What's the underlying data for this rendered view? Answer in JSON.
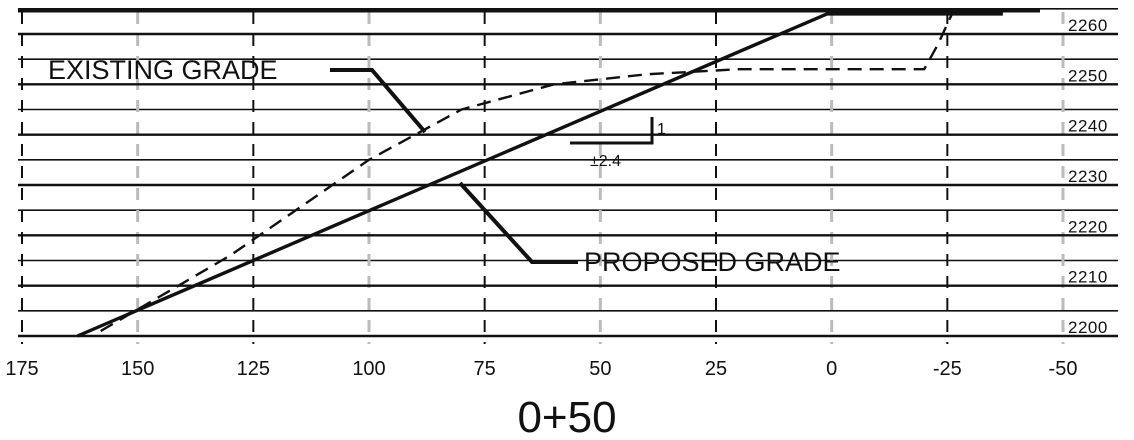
{
  "elevation_labels": [
    "2260",
    "2250",
    "2240",
    "2230",
    "2220",
    "2210",
    "2200"
  ],
  "offset_labels": [
    "175",
    "150",
    "125",
    "100",
    "75",
    "50",
    "25",
    "0",
    "-25",
    "-50"
  ],
  "existing_grade_label": "EXISTING GRADE",
  "proposed_grade_label": "PROPOSED GRADE",
  "slope_rise_label": "1",
  "slope_run_label": "±2.4",
  "station_label": "0+50",
  "colors": {
    "ink": "#111111",
    "dashed_grid": "#bbbbbb"
  },
  "chart_data": {
    "type": "line",
    "title": "0+50",
    "xlabel": "",
    "ylabel": "",
    "x_ticks": [
      175,
      150,
      125,
      100,
      75,
      50,
      25,
      0,
      -25,
      -50
    ],
    "y_ticks": [
      2200,
      2210,
      2220,
      2230,
      2240,
      2250,
      2260
    ],
    "xlim": [
      175,
      -50
    ],
    "ylim": [
      2200,
      2260
    ],
    "series": [
      {
        "name": "PROPOSED GRADE",
        "style": "solid",
        "x": [
          163,
          1,
          -37
        ],
        "y": [
          2200,
          2264,
          2264
        ]
      },
      {
        "name": "EXISTING GRADE",
        "style": "dashed",
        "x": [
          158,
          130,
          100,
          80,
          60,
          40,
          20,
          -20,
          -23,
          -26
        ],
        "y": [
          2201,
          2216,
          2235,
          2245,
          2250,
          2252,
          2253,
          2253,
          2258,
          2264
        ]
      }
    ],
    "annotations": [
      "EXISTING GRADE",
      "PROPOSED GRADE",
      "1",
      "±2.4"
    ]
  }
}
